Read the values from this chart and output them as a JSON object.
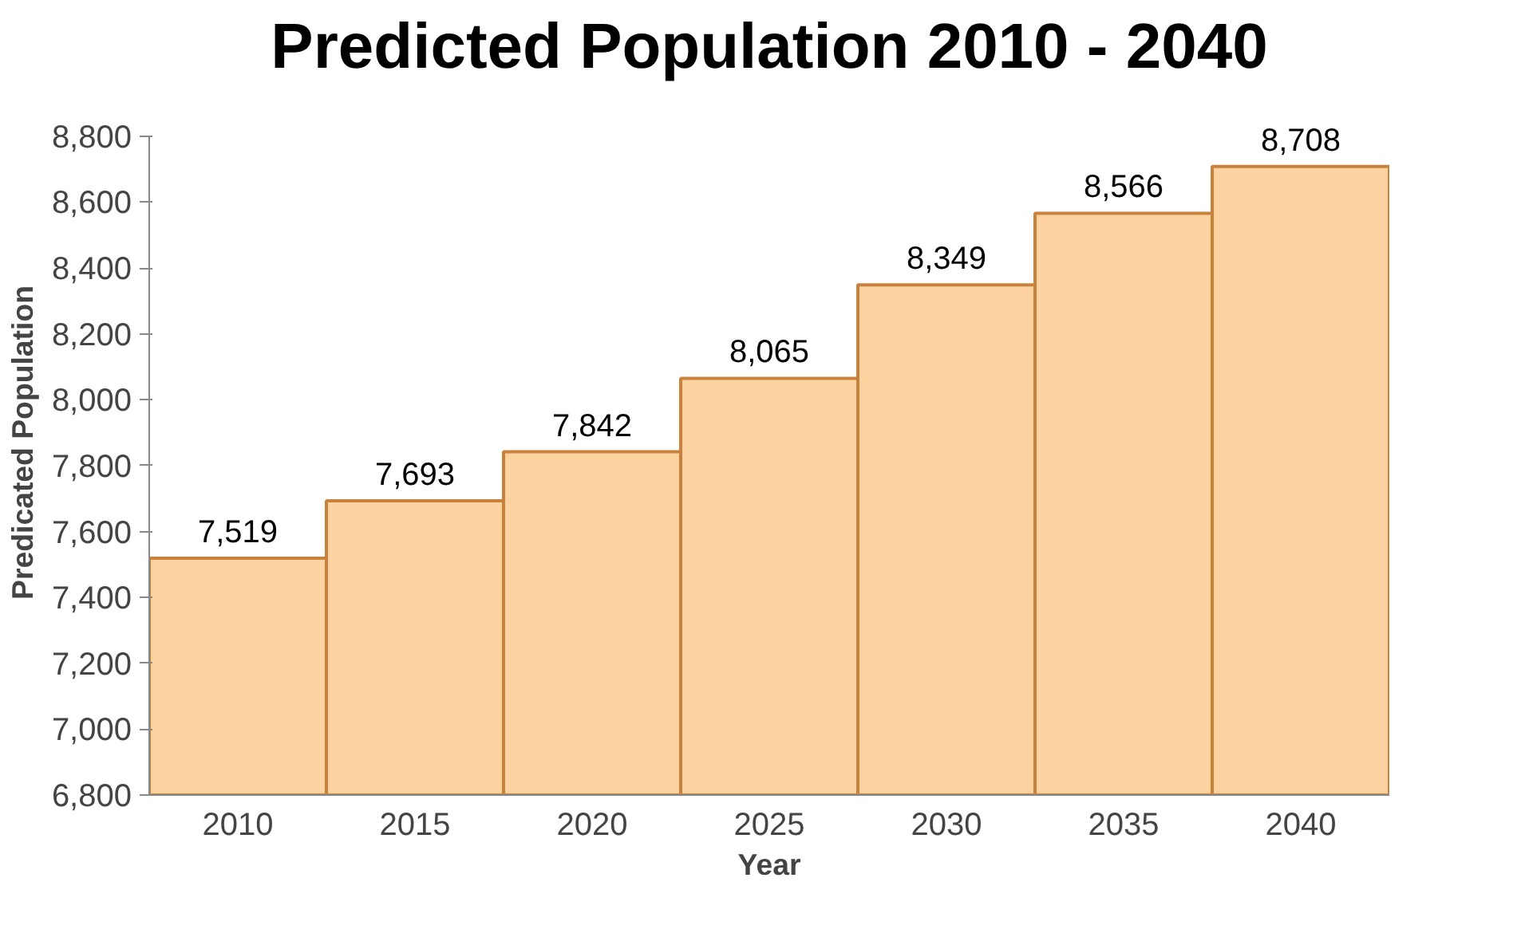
{
  "chart_data": {
    "type": "bar",
    "title": "Predicted Population 2010 - 2040",
    "xlabel": "Year",
    "ylabel": "Predicated Population",
    "categories": [
      "2010",
      "2015",
      "2020",
      "2025",
      "2030",
      "2035",
      "2040"
    ],
    "values": [
      7519,
      7693,
      7842,
      8065,
      8349,
      8566,
      8708
    ],
    "value_labels": [
      "7,519",
      "7,693",
      "7,842",
      "8,065",
      "8,349",
      "8,566",
      "8,708"
    ],
    "color": "#fcd3a0",
    "ylim": [
      6800,
      8800
    ],
    "yticks": [
      {
        "value": 6800,
        "label": "6,800"
      },
      {
        "value": 7000,
        "label": "7,000"
      },
      {
        "value": 7200,
        "label": "7,200"
      },
      {
        "value": 7400,
        "label": "7,400"
      },
      {
        "value": 7600,
        "label": "7,600"
      },
      {
        "value": 7800,
        "label": "7,800"
      },
      {
        "value": 8000,
        "label": "8,000"
      },
      {
        "value": 8200,
        "label": "8,200"
      },
      {
        "value": 8400,
        "label": "8,400"
      },
      {
        "value": 8600,
        "label": "8,600"
      },
      {
        "value": 8800,
        "label": "8,800"
      }
    ],
    "grid": false
  }
}
